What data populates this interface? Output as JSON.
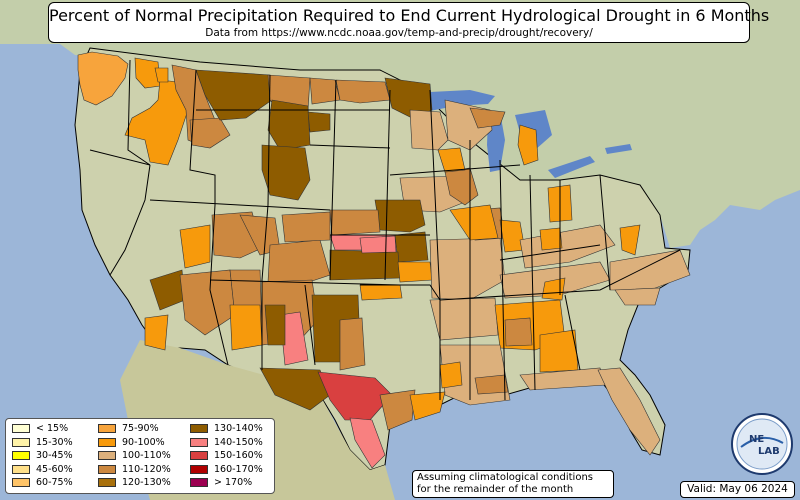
{
  "title": "Percent of Normal Precipitation Required to End Current Hydrological Drought in 6 Months",
  "subtitle": "Data from https://www.ncdc.noaa.gov/temp-and-precip/drought/recovery/",
  "legend": [
    {
      "label": "< 15%",
      "color": "#ffffd4"
    },
    {
      "label": "15-30%",
      "color": "#fff3a8"
    },
    {
      "label": "30-45%",
      "color": "#ffff00"
    },
    {
      "label": "45-60%",
      "color": "#ffe08a"
    },
    {
      "label": "60-75%",
      "color": "#ffc468"
    },
    {
      "label": "75-90%",
      "color": "#f7a43c"
    },
    {
      "label": "90-100%",
      "color": "#f79a0c"
    },
    {
      "label": "100-110%",
      "color": "#dcb07c"
    },
    {
      "label": "110-120%",
      "color": "#cc8840"
    },
    {
      "label": "120-130%",
      "color": "#a8700c"
    },
    {
      "label": "130-140%",
      "color": "#8e5c00"
    },
    {
      "label": "140-150%",
      "color": "#f88080"
    },
    {
      "label": "150-160%",
      "color": "#d94040"
    },
    {
      "label": "160-170%",
      "color": "#b00000"
    },
    {
      "label": "> 170%",
      "color": "#9c0050"
    }
  ],
  "note": {
    "line1": "Assuming climatological conditions",
    "line2": "for the remainder of the month"
  },
  "valid": "Valid: May 06 2024",
  "logo": {
    "text_top": "NE",
    "text_bottom": "LAB"
  },
  "colors": {
    "ocean": "#9cb6d8",
    "land": "#c7cfa5",
    "lakes": "#5f86c8"
  }
}
